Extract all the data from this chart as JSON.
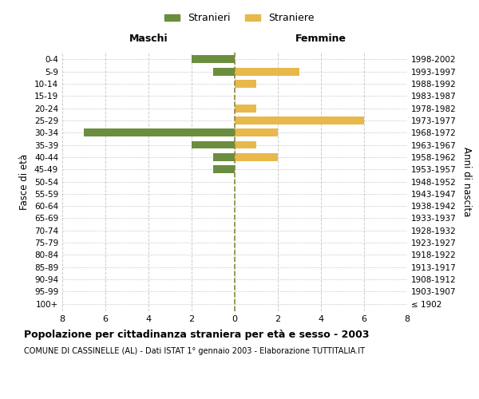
{
  "age_groups": [
    "100+",
    "95-99",
    "90-94",
    "85-89",
    "80-84",
    "75-79",
    "70-74",
    "65-69",
    "60-64",
    "55-59",
    "50-54",
    "45-49",
    "40-44",
    "35-39",
    "30-34",
    "25-29",
    "20-24",
    "15-19",
    "10-14",
    "5-9",
    "0-4"
  ],
  "birth_years": [
    "≤ 1902",
    "1903-1907",
    "1908-1912",
    "1913-1917",
    "1918-1922",
    "1923-1927",
    "1928-1932",
    "1933-1937",
    "1938-1942",
    "1943-1947",
    "1948-1952",
    "1953-1957",
    "1958-1962",
    "1963-1967",
    "1968-1972",
    "1973-1977",
    "1978-1982",
    "1983-1987",
    "1988-1992",
    "1993-1997",
    "1998-2002"
  ],
  "males": [
    0,
    0,
    0,
    0,
    0,
    0,
    0,
    0,
    0,
    0,
    0,
    1,
    1,
    2,
    7,
    0,
    0,
    0,
    0,
    1,
    2
  ],
  "females": [
    0,
    0,
    0,
    0,
    0,
    0,
    0,
    0,
    0,
    0,
    0,
    0,
    2,
    1,
    2,
    6,
    1,
    0,
    1,
    3,
    0
  ],
  "male_color": "#6b8e3e",
  "female_color": "#e8b84b",
  "title": "Popolazione per cittadinanza straniera per età e sesso - 2003",
  "subtitle": "COMUNE DI CASSINELLE (AL) - Dati ISTAT 1° gennaio 2003 - Elaborazione TUTTITALIA.IT",
  "xlabel_left": "Maschi",
  "xlabel_right": "Femmine",
  "ylabel_left": "Fasce di età",
  "ylabel_right": "Anni di nascita",
  "legend_males": "Stranieri",
  "legend_females": "Straniere",
  "xlim": 8,
  "background_color": "#ffffff",
  "grid_color": "#cccccc",
  "center_line_color": "#8b8b3a"
}
